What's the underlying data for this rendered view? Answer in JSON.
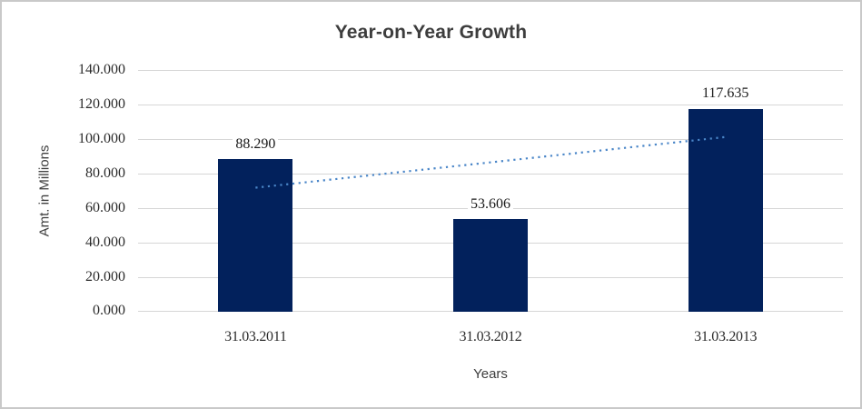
{
  "chart_data": {
    "type": "bar",
    "title": "Year-on-Year Growth",
    "xlabel": "Years",
    "ylabel": "Amt. in Millions",
    "categories": [
      "31.03.2011",
      "31.03.2012",
      "31.03.2013"
    ],
    "values": [
      88.29,
      53.606,
      117.635
    ],
    "data_labels": [
      "88.290",
      "53.606",
      "117.635"
    ],
    "ytick_labels": [
      "0.000",
      "20.000",
      "40.000",
      "60.000",
      "80.000",
      "100.000",
      "120.000",
      "140.000"
    ],
    "ylim": [
      0,
      140
    ],
    "ytick_step": 20,
    "grid": true,
    "legend": "none",
    "series_name": "Amt. in Millions",
    "trendline": {
      "type": "linear",
      "style": "dotted"
    },
    "colors": {
      "bar": "#02215C",
      "trendline": "#4A86C8",
      "gridline": "#D6D6D6",
      "chart_border": "#C9C9C9",
      "title_text": "#3D3D3D",
      "axis_text": "#2B2B2B",
      "background": "#FFFFFF"
    }
  }
}
